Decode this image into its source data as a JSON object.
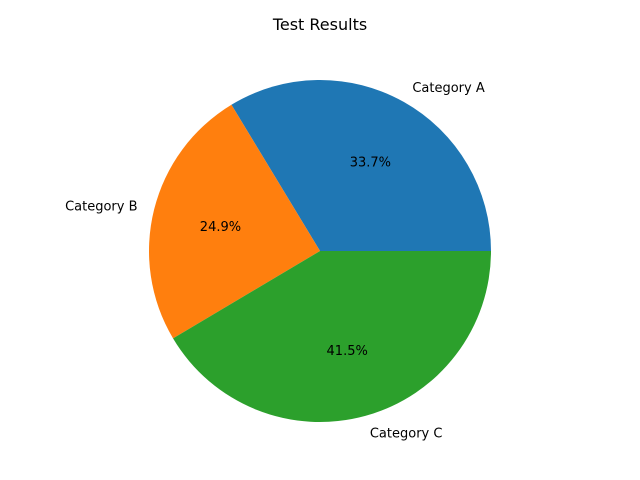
{
  "chart_data": {
    "type": "pie",
    "title": "Test Results",
    "categories": [
      "Category A",
      "Category B",
      "Category C"
    ],
    "values": [
      33.7,
      24.9,
      41.5
    ],
    "value_labels": [
      "33.7%",
      "24.9%",
      "41.5%"
    ],
    "colors": [
      "#1f77b4",
      "#ff7f0e",
      "#2ca02c"
    ],
    "start_angle_deg": 0,
    "direction": "counterclockwise"
  }
}
